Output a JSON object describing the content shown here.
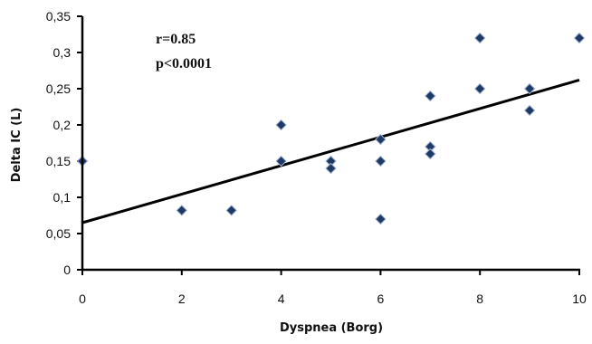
{
  "chart_data": {
    "type": "scatter",
    "xlabel": "Dyspnea (Borg)",
    "ylabel": "Delta IC (L)",
    "xlim": [
      0,
      10
    ],
    "ylim": [
      0,
      0.35
    ],
    "x_ticks": [
      0,
      2,
      4,
      6,
      8,
      10
    ],
    "x_tick_labels": [
      "0",
      "2",
      "4",
      "6",
      "8",
      "10"
    ],
    "y_ticks": [
      0,
      0.05,
      0.1,
      0.15,
      0.2,
      0.25,
      0.3,
      0.35
    ],
    "y_tick_labels": [
      "0",
      "0,05",
      "0,1",
      "0,15",
      "0,2",
      "0,25",
      "0,3",
      "0,35"
    ],
    "grid": false,
    "annotations": [
      "r=0.85",
      "p<0.0001"
    ],
    "points": [
      {
        "x": 0,
        "y": 0.15
      },
      {
        "x": 2,
        "y": 0.082
      },
      {
        "x": 3,
        "y": 0.082
      },
      {
        "x": 4,
        "y": 0.2
      },
      {
        "x": 4,
        "y": 0.15
      },
      {
        "x": 5,
        "y": 0.15
      },
      {
        "x": 5,
        "y": 0.14
      },
      {
        "x": 6,
        "y": 0.18
      },
      {
        "x": 6,
        "y": 0.15
      },
      {
        "x": 6,
        "y": 0.07
      },
      {
        "x": 7,
        "y": 0.24
      },
      {
        "x": 7,
        "y": 0.17
      },
      {
        "x": 7,
        "y": 0.16
      },
      {
        "x": 8,
        "y": 0.32
      },
      {
        "x": 8,
        "y": 0.25
      },
      {
        "x": 9,
        "y": 0.25
      },
      {
        "x": 9,
        "y": 0.22
      },
      {
        "x": 10,
        "y": 0.32
      }
    ],
    "trendline": {
      "x": [
        0,
        10
      ],
      "y": [
        0.065,
        0.262
      ]
    },
    "marker_color": "#1f3864",
    "line_color": "#000000"
  }
}
